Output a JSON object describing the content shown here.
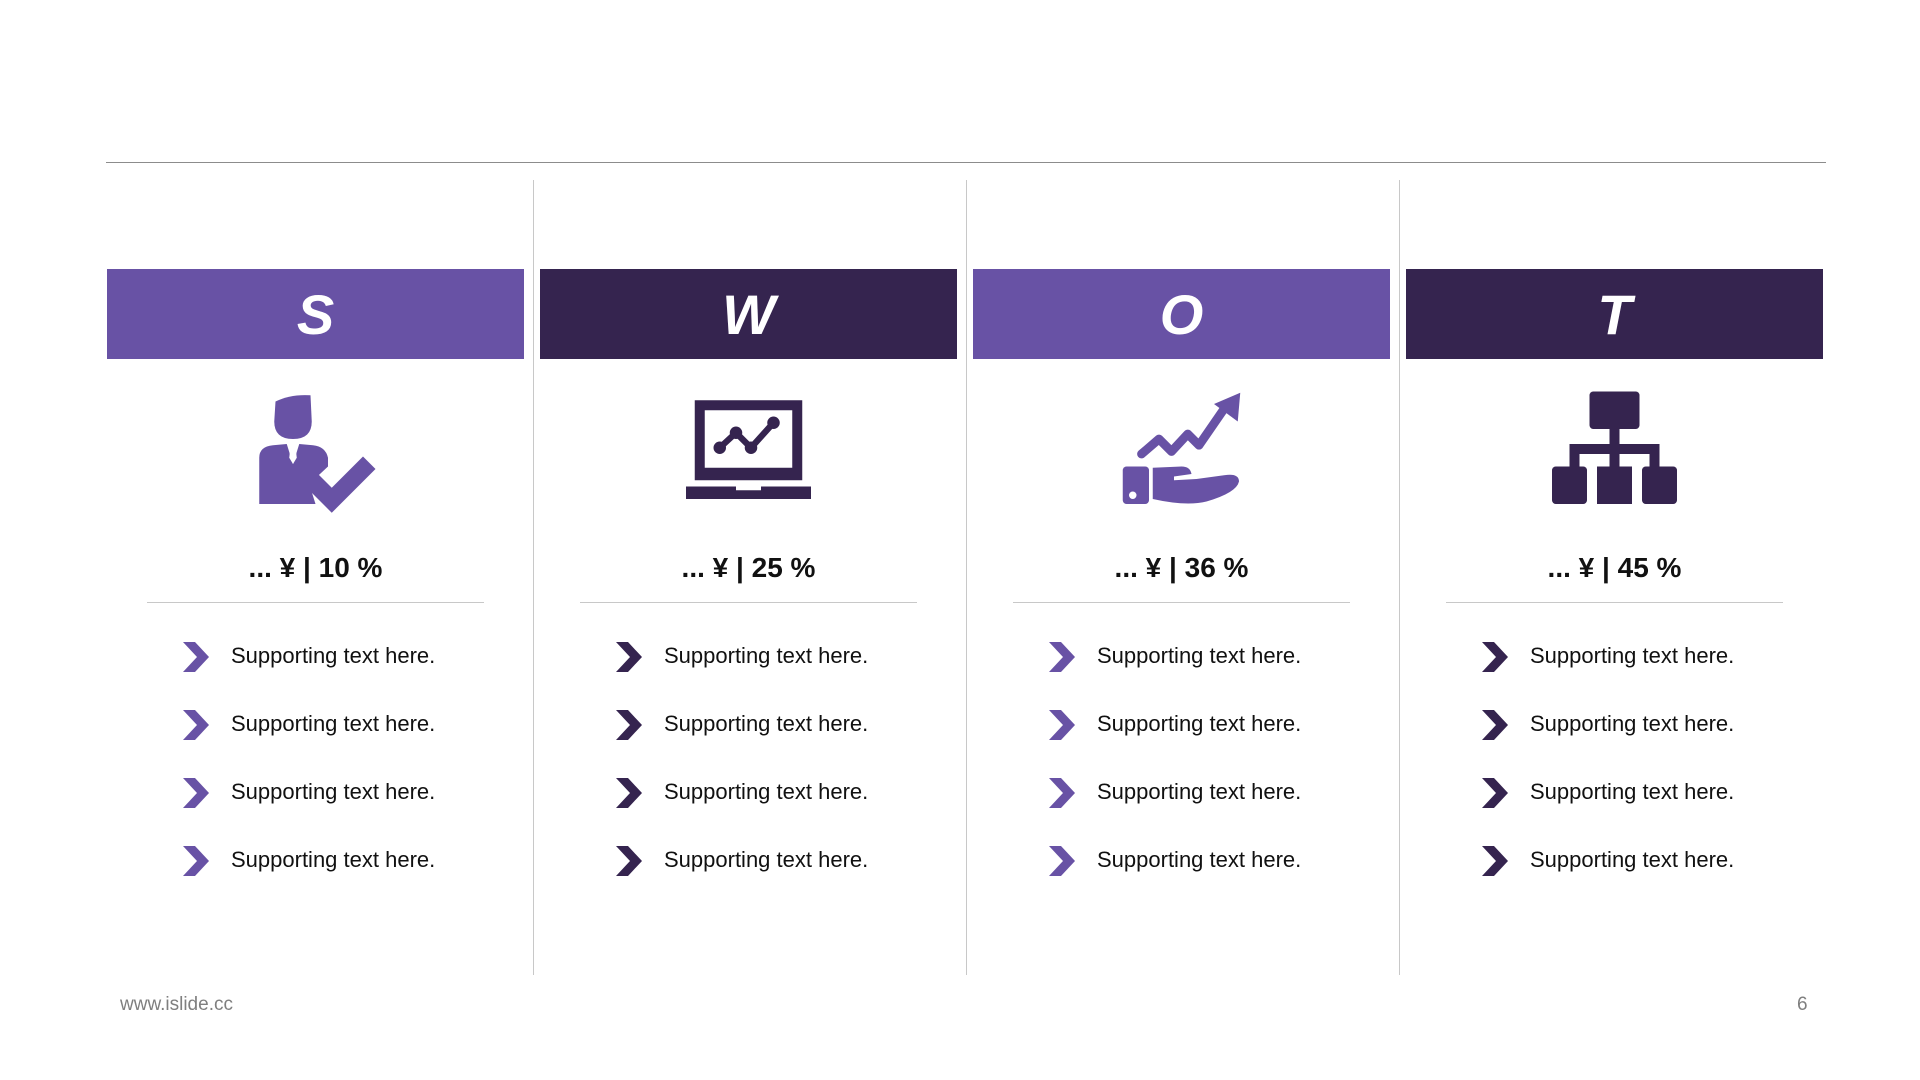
{
  "slide": {
    "footer_url": "www.islide.cc",
    "page_number": "6"
  },
  "colors": {
    "light_purple": "#6852a5",
    "dark_purple": "#35244f"
  },
  "columns": [
    {
      "letter": "S",
      "icon": "businessman-check-icon",
      "color": "light",
      "metric": "... ¥ | 10 %",
      "bullets": [
        "Supporting text here.",
        "Supporting text here.",
        "Supporting text here.",
        "Supporting text here."
      ]
    },
    {
      "letter": "W",
      "icon": "monitor-line-chart-icon",
      "color": "dark",
      "metric": "... ¥ | 25 %",
      "bullets": [
        "Supporting text here.",
        "Supporting text here.",
        "Supporting text here.",
        "Supporting text here."
      ]
    },
    {
      "letter": "O",
      "icon": "hand-growth-arrow-icon",
      "color": "light",
      "metric": "... ¥ | 36 %",
      "bullets": [
        "Supporting text here.",
        "Supporting text here.",
        "Supporting text here.",
        "Supporting text here."
      ]
    },
    {
      "letter": "T",
      "icon": "org-chart-icon",
      "color": "dark",
      "metric": "... ¥ | 45 %",
      "bullets": [
        "Supporting text here.",
        "Supporting text here.",
        "Supporting text here.",
        "Supporting text here."
      ]
    }
  ]
}
